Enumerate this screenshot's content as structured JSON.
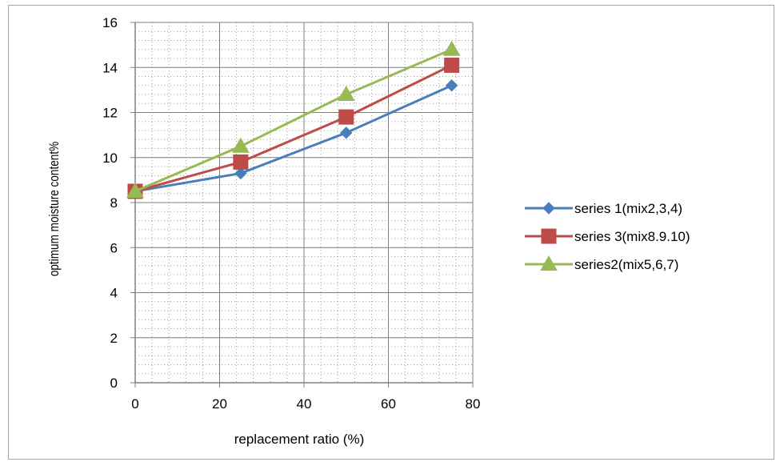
{
  "chart_data": {
    "type": "line",
    "title": "",
    "xlabel": "replacement ratio (%)",
    "ylabel": "optimum moisture content%",
    "xlim": [
      0,
      80
    ],
    "ylim": [
      0,
      16
    ],
    "x_ticks": [
      0,
      20,
      40,
      60,
      80
    ],
    "y_ticks": [
      0,
      2,
      4,
      6,
      8,
      10,
      12,
      14,
      16
    ],
    "x_tick_labels": [
      "0",
      "20",
      "40",
      "60",
      "80"
    ],
    "y_tick_labels": [
      "0",
      "2",
      "4",
      "6",
      "8",
      "10",
      "12",
      "14",
      "16"
    ],
    "grid": "major and minor gridlines on both axes",
    "legend_position": "right",
    "x": [
      0,
      25,
      50,
      75
    ],
    "series": [
      {
        "name": "series 1(mix2,3,4)",
        "values": [
          8.5,
          9.3,
          11.1,
          13.2
        ],
        "color": "#4a7ebb",
        "marker": "diamond"
      },
      {
        "name": "series 3(mix8.9.10)",
        "values": [
          8.5,
          9.8,
          11.8,
          14.1
        ],
        "color": "#be4b48",
        "marker": "square"
      },
      {
        "name": "series2(mix5,6,7)",
        "values": [
          8.5,
          10.5,
          12.8,
          14.8
        ],
        "color": "#98b954",
        "marker": "triangle"
      }
    ]
  }
}
